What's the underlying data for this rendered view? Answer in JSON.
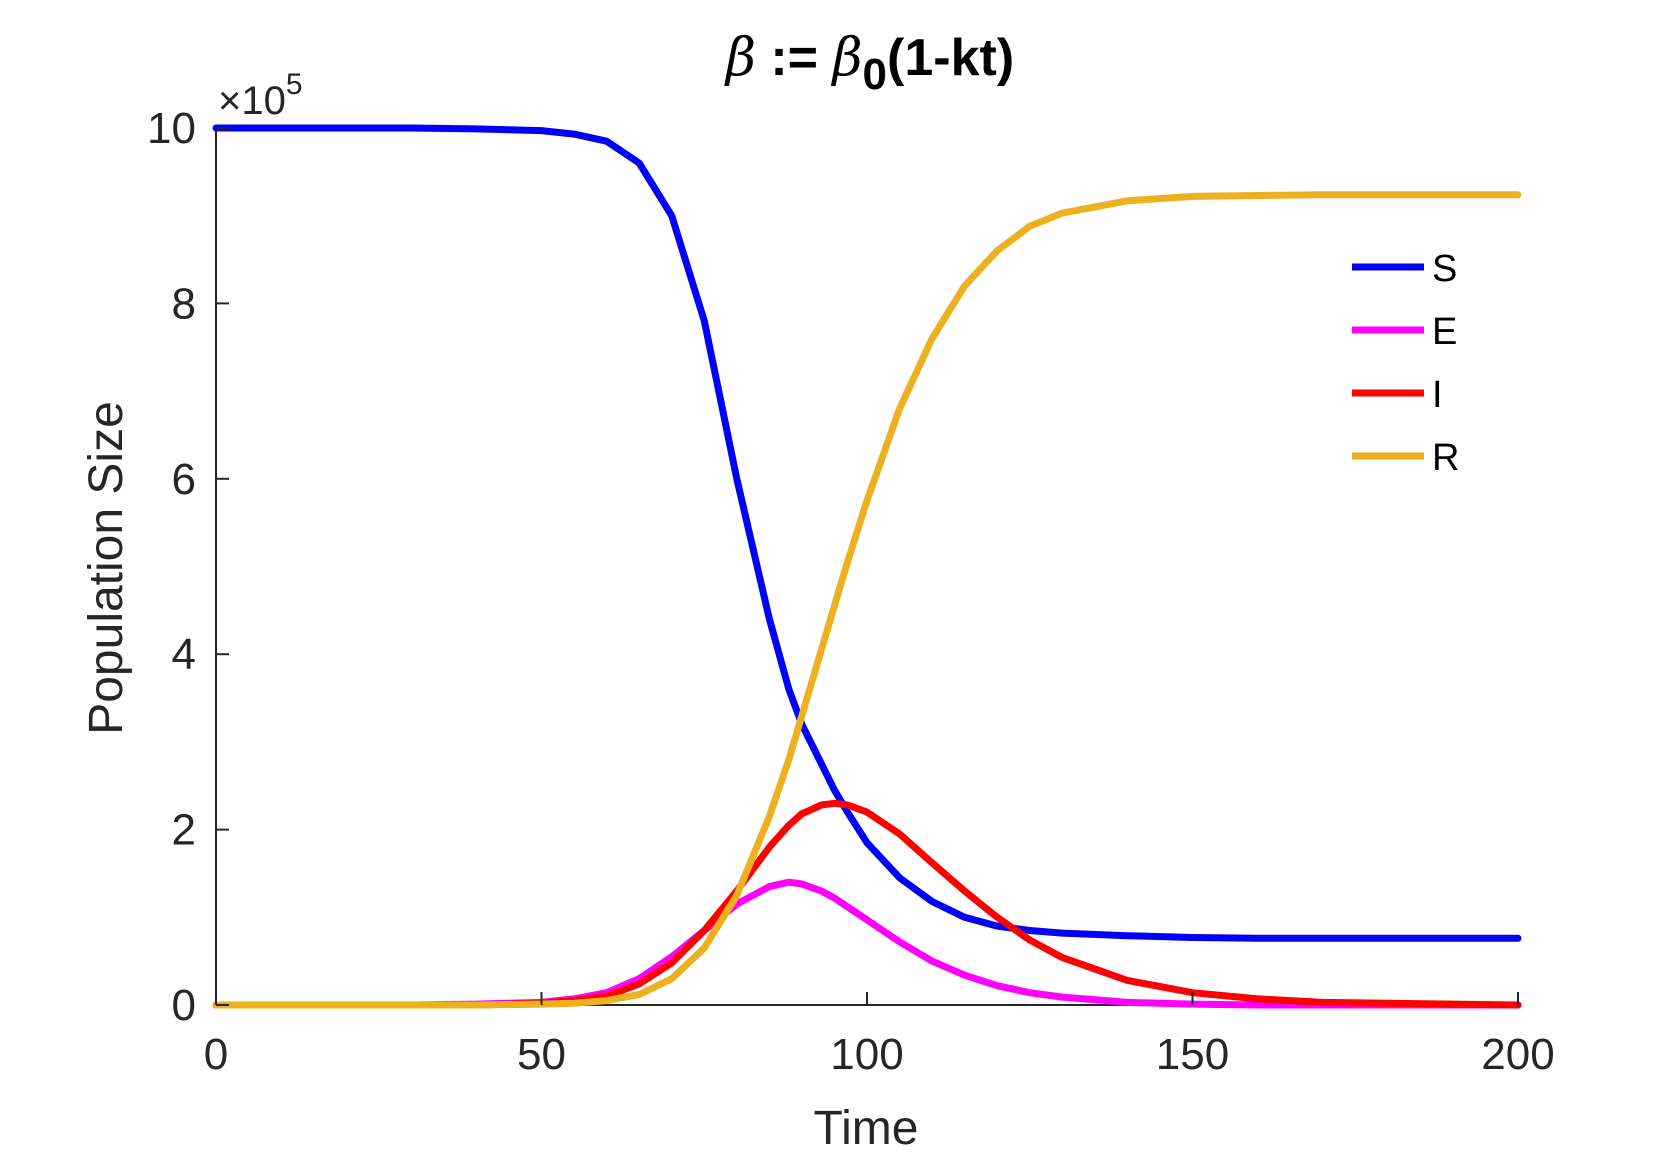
{
  "chart_data": {
    "type": "line",
    "title": {
      "parts": [
        {
          "text": "β",
          "style": "beta"
        },
        {
          "text": " := ",
          "style": "bold"
        },
        {
          "text": "β",
          "style": "beta"
        },
        {
          "text": "0",
          "style": "sub"
        },
        {
          "text": "(1-kt)",
          "style": "bold"
        }
      ]
    },
    "xlabel": "Time",
    "ylabel": "Population Size",
    "y_exponent_label": "×10",
    "y_exponent_power": "5",
    "xlim": [
      0,
      200
    ],
    "ylim": [
      0,
      10
    ],
    "xticks": [
      0,
      50,
      100,
      150,
      200
    ],
    "xtick_labels": [
      "0",
      "50",
      "100",
      "150",
      "200"
    ],
    "yticks": [
      0,
      2,
      4,
      6,
      8,
      10
    ],
    "ytick_labels": [
      "0",
      "2",
      "4",
      "6",
      "8",
      "10"
    ],
    "grid": false,
    "legend_position": "top-right",
    "x": [
      0,
      10,
      20,
      30,
      40,
      50,
      55,
      60,
      65,
      70,
      75,
      80,
      85,
      88,
      90,
      93,
      95,
      97,
      100,
      105,
      110,
      115,
      120,
      125,
      130,
      140,
      150,
      160,
      170,
      180,
      190,
      200
    ],
    "series": [
      {
        "name": "S",
        "color": "#0000ff",
        "values": [
          10.0,
          10.0,
          10.0,
          10.0,
          9.99,
          9.97,
          9.93,
          9.85,
          9.6,
          9.0,
          7.8,
          6.0,
          4.4,
          3.6,
          3.2,
          2.75,
          2.45,
          2.2,
          1.85,
          1.45,
          1.18,
          1.0,
          0.9,
          0.85,
          0.82,
          0.79,
          0.77,
          0.76,
          0.76,
          0.76,
          0.76,
          0.76
        ]
      },
      {
        "name": "E",
        "color": "#ff00ff",
        "values": [
          0.0,
          0.0,
          0.0,
          0.0,
          0.01,
          0.03,
          0.07,
          0.14,
          0.3,
          0.55,
          0.85,
          1.15,
          1.35,
          1.4,
          1.38,
          1.3,
          1.22,
          1.12,
          0.97,
          0.72,
          0.5,
          0.34,
          0.22,
          0.14,
          0.09,
          0.03,
          0.01,
          0.0,
          0.0,
          0.0,
          0.0,
          0.0
        ]
      },
      {
        "name": "I",
        "color": "#ff0000",
        "values": [
          0.0,
          0.0,
          0.0,
          0.0,
          0.0,
          0.02,
          0.05,
          0.1,
          0.24,
          0.48,
          0.85,
          1.3,
          1.8,
          2.05,
          2.18,
          2.28,
          2.3,
          2.28,
          2.2,
          1.95,
          1.62,
          1.3,
          1.0,
          0.74,
          0.54,
          0.28,
          0.14,
          0.07,
          0.03,
          0.02,
          0.01,
          0.0
        ]
      },
      {
        "name": "R",
        "color": "#edb120",
        "values": [
          0.0,
          0.0,
          0.0,
          0.0,
          0.0,
          0.01,
          0.02,
          0.05,
          0.12,
          0.3,
          0.65,
          1.25,
          2.15,
          2.8,
          3.3,
          4.05,
          4.55,
          5.05,
          5.75,
          6.8,
          7.6,
          8.2,
          8.6,
          8.88,
          9.03,
          9.17,
          9.22,
          9.23,
          9.24,
          9.24,
          9.24,
          9.24
        ]
      }
    ]
  }
}
